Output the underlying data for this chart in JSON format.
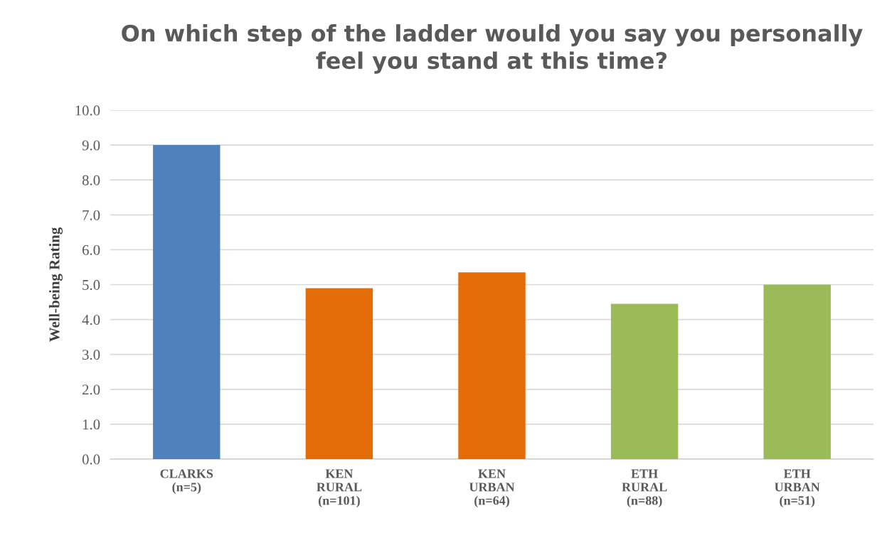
{
  "chart_data": {
    "type": "bar",
    "title": "On which step of the ladder would you say you personally\nfeel you stand at this time?",
    "ylabel": "Well-being Rating",
    "categories": [
      "CLARKS\n(n=5)",
      "KEN\nRURAL\n(n=101)",
      "KEN\nURBAN\n(n=64)",
      "ETH\nRURAL\n(n=88)",
      "ETH\nURBAN\n(n=51)"
    ],
    "values": [
      9.0,
      4.9,
      5.35,
      4.45,
      5.0
    ],
    "colors": [
      "#4f81bd",
      "#e36c09",
      "#e36c09",
      "#9bbb59",
      "#9bbb59"
    ],
    "ylim": [
      0,
      10
    ],
    "yticks": [
      {
        "value": 0,
        "label": "0.0"
      },
      {
        "value": 1,
        "label": "1.0"
      },
      {
        "value": 2,
        "label": "2.0"
      },
      {
        "value": 3,
        "label": "3.0"
      },
      {
        "value": 4,
        "label": "4.0"
      },
      {
        "value": 5,
        "label": "5.0"
      },
      {
        "value": 6,
        "label": "6.0"
      },
      {
        "value": 7,
        "label": "7.0"
      },
      {
        "value": 8,
        "label": "8.0"
      },
      {
        "value": 9,
        "label": "9.0"
      },
      {
        "value": 10,
        "label": "10.0"
      }
    ],
    "grid": "y",
    "legend": false
  }
}
